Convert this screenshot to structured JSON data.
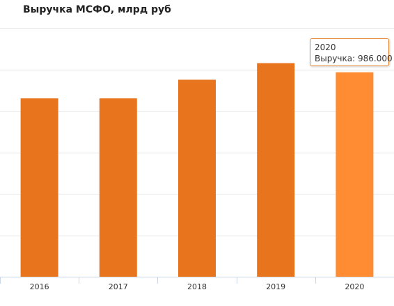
{
  "chart_data": {
    "type": "bar",
    "title": "Выручка МСФО, млрд руб",
    "categories": [
      "2016",
      "2017",
      "2018",
      "2019",
      "2020"
    ],
    "series": [
      {
        "name": "Выручка",
        "values": [
          860,
          860,
          950,
          1030,
          986
        ]
      }
    ],
    "ylim": [
      0,
      1200
    ],
    "grid": true,
    "highlight_index": 4,
    "colors": {
      "bar": "#e8741e",
      "bar_highlight": "#ff8c33",
      "grid": "#e6e6e6",
      "axis": "#ccd6eb"
    }
  },
  "tooltip": {
    "category": "2020",
    "series_label": "Выручка",
    "value_text": "986.000"
  }
}
